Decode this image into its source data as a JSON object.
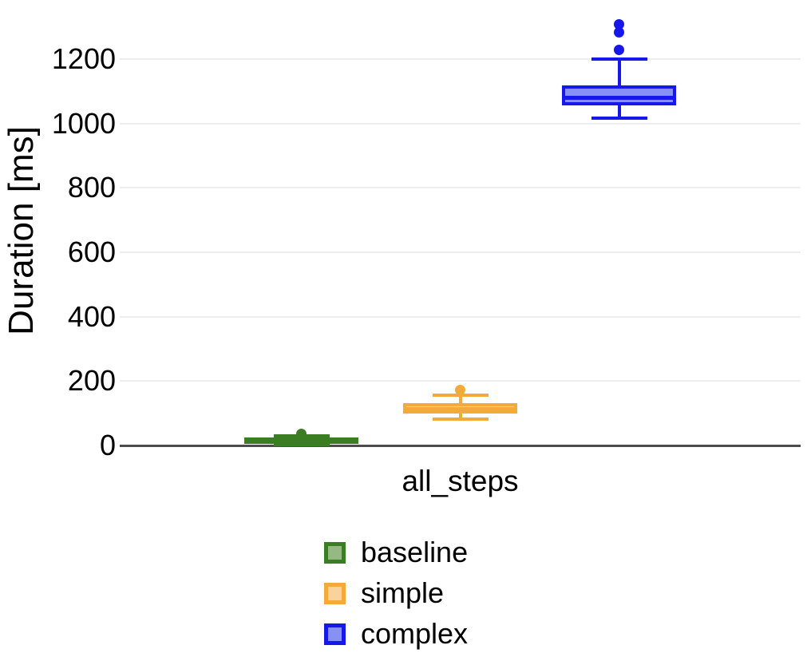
{
  "chart_data": {
    "type": "boxplot",
    "title": "",
    "xlabel": "",
    "ylabel": "Duration [ms]",
    "categories": [
      "all_steps"
    ],
    "yticks": [
      0,
      200,
      400,
      600,
      800,
      1000,
      1200
    ],
    "ylim": [
      0,
      1345
    ],
    "grid": true,
    "legend_position": "bottom-left",
    "colors": {
      "background": "#ffffff",
      "gridline": "#ededed",
      "axis_line": "#4c4c4c",
      "text": "#000000"
    },
    "series": [
      {
        "name": "baseline",
        "border_color": "#3a7d22",
        "fill_color": "#96b883",
        "stats": {
          "whisker_low": 3,
          "q1": 8,
          "median": 16,
          "q3": 25,
          "whisker_high": 30,
          "outliers": [
            37
          ]
        }
      },
      {
        "name": "simple",
        "border_color": "#f3a93b",
        "fill_color": "#f8d49c",
        "stats": {
          "whisker_low": 82,
          "q1": 99,
          "median": 112,
          "q3": 131,
          "whisker_high": 156,
          "outliers": [
            172
          ]
        }
      },
      {
        "name": "complex",
        "border_color": "#1517ec",
        "fill_color": "#8791f5",
        "stats": {
          "whisker_low": 1017,
          "q1": 1056,
          "median": 1079,
          "q3": 1118,
          "whisker_high": 1200,
          "outliers": [
            1228,
            1284,
            1309
          ]
        }
      }
    ]
  }
}
